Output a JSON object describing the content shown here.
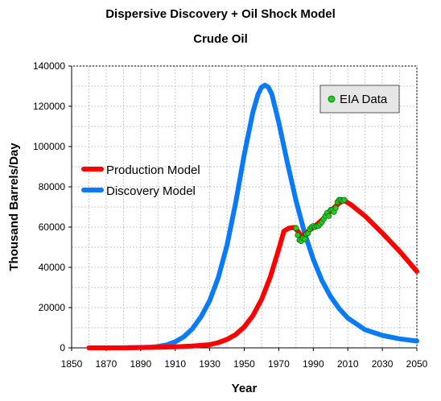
{
  "chart_data": {
    "type": "line",
    "title": "Dispersive Discovery + Oil Shock Model",
    "subtitle": "Crude Oil",
    "xlabel": "Year",
    "ylabel": "Thousand Barrels/Day",
    "xlim": [
      1850,
      2050
    ],
    "ylim": [
      0,
      140000
    ],
    "xticks": [
      1850,
      1870,
      1890,
      1910,
      1930,
      1950,
      1970,
      1990,
      2010,
      2030,
      2050
    ],
    "yticks": [
      0,
      20000,
      40000,
      60000,
      80000,
      100000,
      120000,
      140000
    ],
    "x_minor_step": 10,
    "y_minor_step": 10000,
    "grid": true,
    "legend_placement": "left-middle",
    "series": [
      {
        "name": "Production Model",
        "color": "#ff0000",
        "x": [
          1860,
          1880,
          1900,
          1910,
          1920,
          1930,
          1935,
          1940,
          1945,
          1950,
          1955,
          1960,
          1965,
          1970,
          1973,
          1976,
          1979,
          1981,
          1983,
          1985,
          1988,
          1991,
          1995,
          2000,
          2005,
          2008,
          2012,
          2020,
          2030,
          2040,
          2050
        ],
        "y": [
          0,
          0,
          300,
          500,
          900,
          1600,
          2600,
          4200,
          6600,
          10400,
          16000,
          24000,
          35000,
          49000,
          58000,
          59500,
          59800,
          58000,
          55500,
          56500,
          58500,
          60500,
          63500,
          68000,
          72000,
          73200,
          71000,
          65500,
          57000,
          48000,
          38000
        ]
      },
      {
        "name": "Discovery Model",
        "color": "#0a7af5",
        "x": [
          1860,
          1880,
          1895,
          1900,
          1905,
          1910,
          1915,
          1920,
          1925,
          1930,
          1935,
          1940,
          1945,
          1950,
          1955,
          1958,
          1960,
          1962,
          1964,
          1966,
          1970,
          1975,
          1980,
          1985,
          1990,
          1995,
          2000,
          2005,
          2010,
          2020,
          2030,
          2040,
          2050
        ],
        "y": [
          0,
          0,
          300,
          700,
          1500,
          3000,
          5500,
          9500,
          15500,
          23500,
          35000,
          51000,
          72000,
          96000,
          117000,
          126000,
          129500,
          130500,
          129500,
          126000,
          112000,
          92000,
          73000,
          57000,
          44000,
          33500,
          25500,
          19500,
          14800,
          9000,
          6200,
          4500,
          3400
        ]
      },
      {
        "name": "EIA Data",
        "color": "#22cc22",
        "marker": "circle",
        "x": [
          1980,
          1981,
          1982,
          1983,
          1984,
          1985,
          1986,
          1987,
          1988,
          1989,
          1990,
          1991,
          1992,
          1993,
          1994,
          1995,
          1996,
          1997,
          1998,
          1999,
          2000,
          2001,
          2002,
          2003,
          2004,
          2005,
          2006,
          2007,
          2008
        ],
        "y": [
          59500,
          56000,
          53500,
          53000,
          54500,
          54000,
          56500,
          57000,
          59000,
          60000,
          60500,
          60000,
          60500,
          60500,
          61500,
          62500,
          64000,
          65500,
          67000,
          65500,
          68500,
          68500,
          67500,
          69500,
          72500,
          73500,
          73500,
          73000,
          73500
        ]
      }
    ]
  }
}
